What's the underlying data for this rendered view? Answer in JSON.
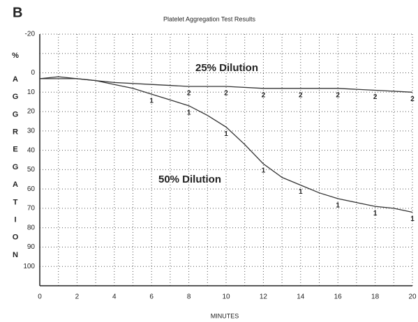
{
  "chart_data": {
    "type": "line",
    "panel_label": "B",
    "title": "Platelet Aggregation Test Results",
    "x_label": "MINUTES",
    "y_unit": "%",
    "y_label": "AGGREGATION",
    "xlim": [
      0,
      20
    ],
    "xticks": [
      0,
      2,
      4,
      6,
      8,
      10,
      12,
      14,
      16,
      18,
      20
    ],
    "x_minor_ticks": [
      1,
      3,
      5,
      7,
      9,
      11,
      13,
      15,
      17,
      19
    ],
    "ylim": [
      -20,
      110
    ],
    "y_inverted": true,
    "yticks": [
      -20,
      0,
      10,
      20,
      30,
      40,
      50,
      60,
      70,
      80,
      90,
      100
    ],
    "y_minor_ticks": [
      -10
    ],
    "grid": true,
    "series": [
      {
        "name": "25% Dilution",
        "color": "#333333",
        "marker_label": "2",
        "marker_x": [
          8,
          10,
          12,
          14,
          16,
          18,
          20
        ],
        "x": [
          0,
          1,
          2,
          4,
          6,
          8,
          10,
          12,
          14,
          16,
          18,
          20
        ],
        "values": [
          3,
          2,
          3,
          5,
          6,
          7,
          7,
          8,
          8,
          8,
          9,
          10
        ]
      },
      {
        "name": "50% Dilution",
        "color": "#333333",
        "marker_label": "1",
        "marker_x": [
          6,
          8,
          10,
          12,
          14,
          16,
          18,
          20
        ],
        "x": [
          0,
          1,
          2,
          3,
          4,
          5,
          6,
          7,
          8,
          9,
          10,
          11,
          12,
          13,
          14,
          15,
          16,
          17,
          18,
          19,
          20
        ],
        "values": [
          3,
          3,
          3,
          4,
          6,
          8,
          11,
          14,
          17,
          22,
          28,
          37,
          47,
          54,
          58,
          62,
          65,
          67,
          69,
          70,
          72
        ]
      }
    ]
  }
}
